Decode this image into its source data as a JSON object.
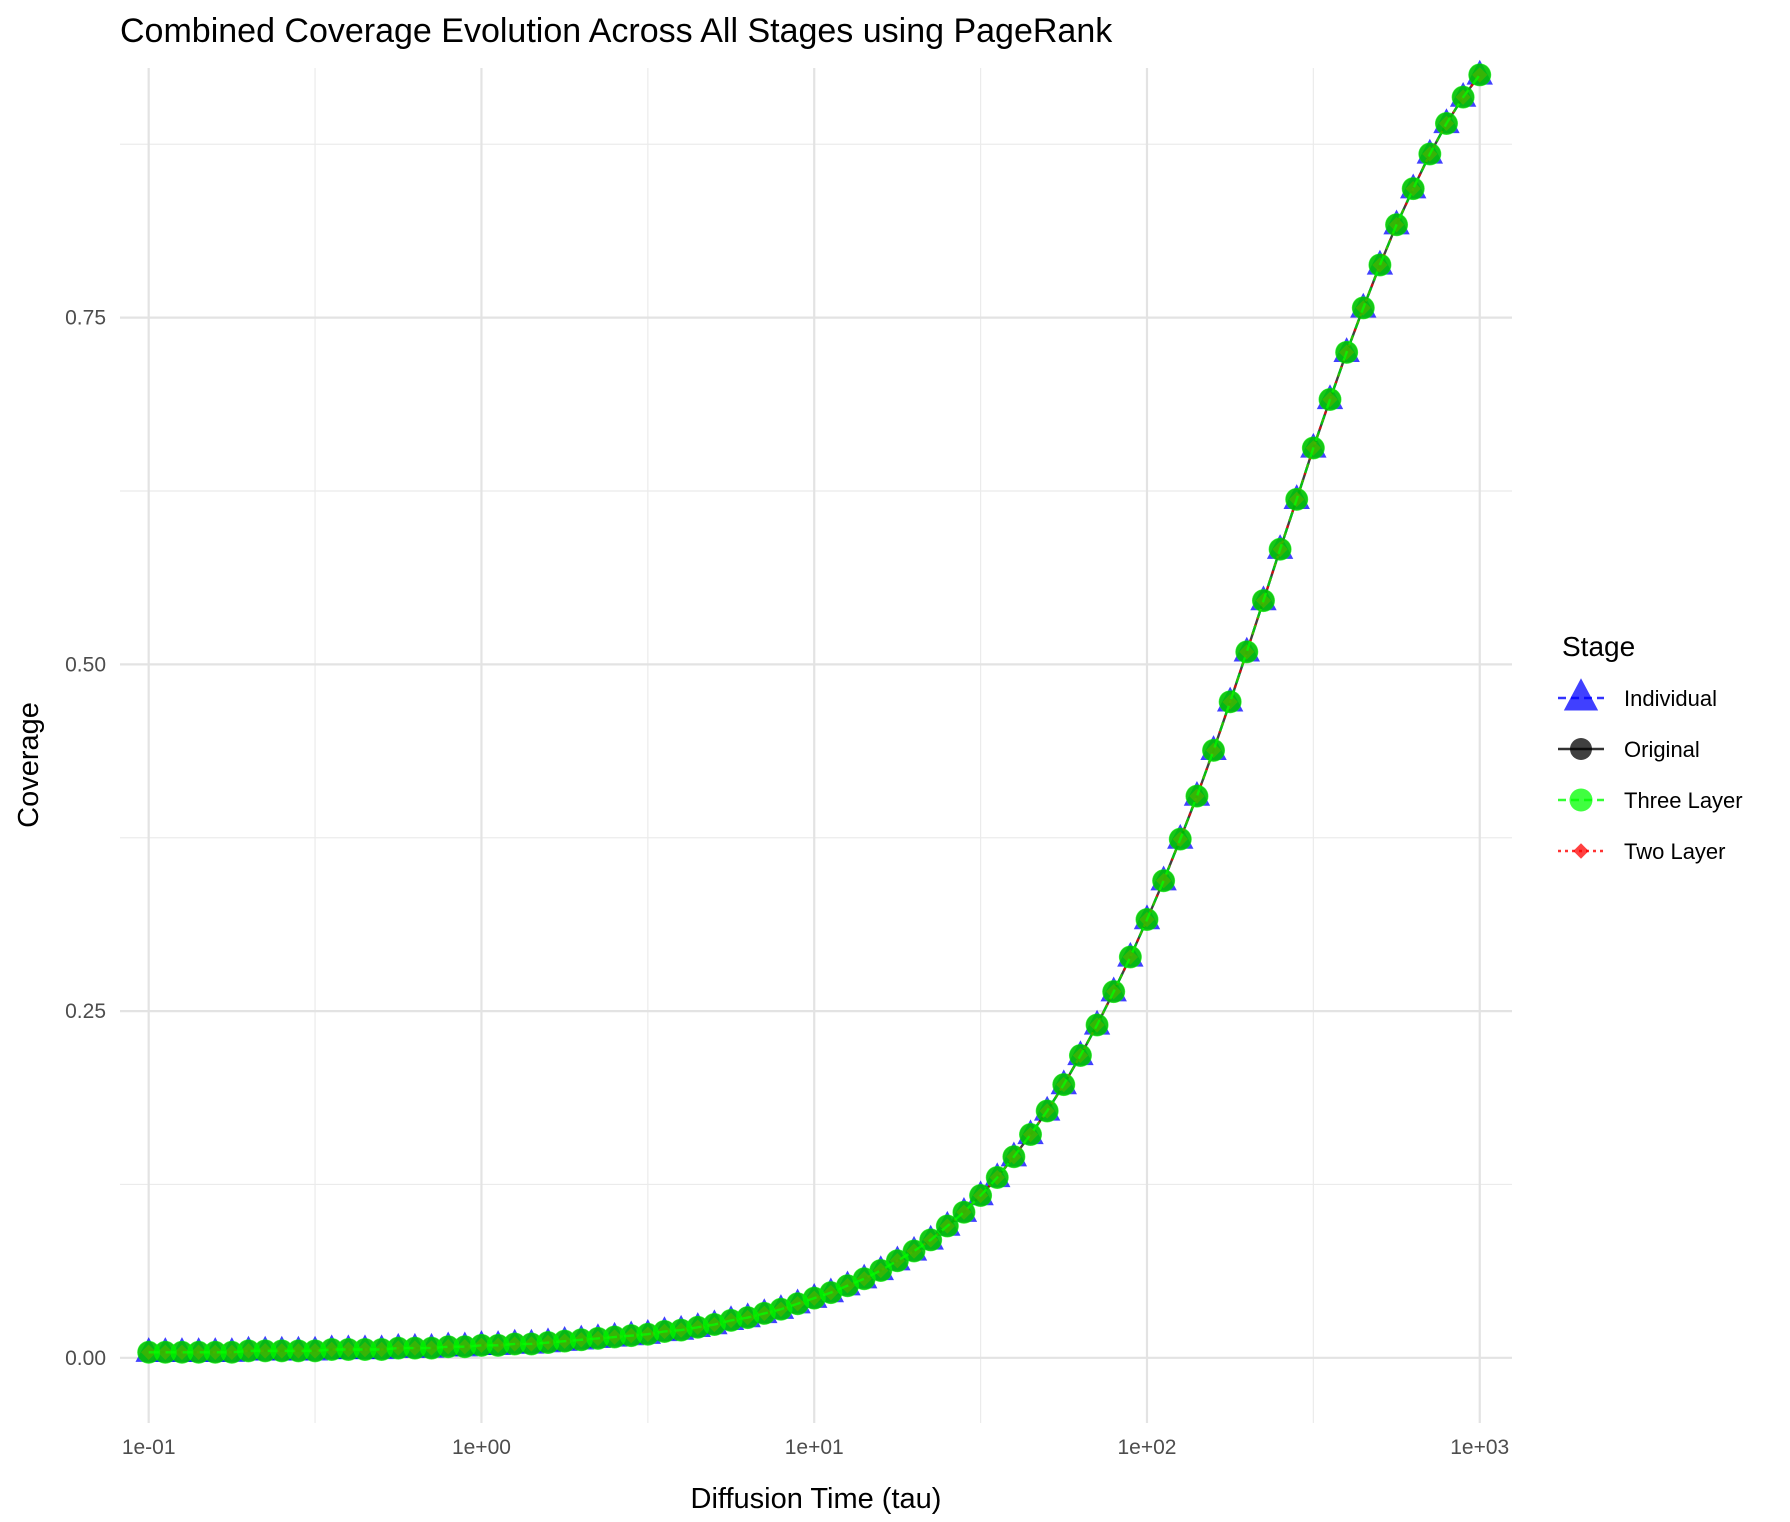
{
  "chart_data": {
    "type": "line",
    "title": "Combined Coverage Evolution Across All Stages using PageRank",
    "xlabel": "Diffusion Time (tau)",
    "ylabel": "Coverage",
    "x_scale": "log10",
    "xlim": [
      0.082,
      1250
    ],
    "ylim": [
      -0.047,
      0.93
    ],
    "x_ticks": [
      0.1,
      1,
      10,
      100,
      1000
    ],
    "x_tick_labels": [
      "1e-01",
      "1e+00",
      "1e+01",
      "1e+02",
      "1e+03"
    ],
    "y_ticks": [
      0,
      0.25,
      0.5,
      0.75
    ],
    "y_tick_labels": [
      "0.00",
      "0.25",
      "0.50",
      "0.75"
    ],
    "grid": true,
    "legend_position": "right",
    "legend_title": "Stage",
    "x": [
      0.1,
      0.1122,
      0.1259,
      0.1413,
      0.1585,
      0.1778,
      0.1995,
      0.2239,
      0.2512,
      0.2818,
      0.3162,
      0.3548,
      0.3981,
      0.4467,
      0.5012,
      0.5623,
      0.631,
      0.7079,
      0.7943,
      0.8913,
      1,
      1.122,
      1.259,
      1.413,
      1.585,
      1.778,
      1.995,
      2.239,
      2.512,
      2.818,
      3.162,
      3.548,
      3.981,
      4.467,
      5.012,
      5.623,
      6.31,
      7.079,
      7.943,
      8.913,
      10,
      11.22,
      12.59,
      14.13,
      15.85,
      17.78,
      19.95,
      22.39,
      25.12,
      28.18,
      31.62,
      35.48,
      39.81,
      44.67,
      50.12,
      56.23,
      63.1,
      70.79,
      79.43,
      89.13,
      100,
      112.2,
      125.9,
      141.3,
      158.5,
      177.8,
      199.5,
      223.9,
      251.2,
      281.8,
      316.2,
      354.8,
      398.1,
      446.7,
      501.2,
      562.3,
      631,
      707.9,
      794.3,
      891.3,
      1000
    ],
    "series": [
      {
        "name": "Individual",
        "color": "#0000ff",
        "marker": "triangle",
        "line": "dashed",
        "values": [
          0.004,
          0.004,
          0.004,
          0.004,
          0.004,
          0.004,
          0.005,
          0.005,
          0.005,
          0.005,
          0.005,
          0.006,
          0.006,
          0.006,
          0.006,
          0.007,
          0.007,
          0.007,
          0.008,
          0.008,
          0.009,
          0.009,
          0.01,
          0.01,
          0.011,
          0.012,
          0.013,
          0.014,
          0.015,
          0.016,
          0.017,
          0.019,
          0.02,
          0.022,
          0.024,
          0.027,
          0.029,
          0.032,
          0.035,
          0.039,
          0.043,
          0.047,
          0.052,
          0.057,
          0.063,
          0.07,
          0.077,
          0.085,
          0.095,
          0.105,
          0.117,
          0.13,
          0.145,
          0.161,
          0.178,
          0.197,
          0.218,
          0.24,
          0.264,
          0.289,
          0.316,
          0.344,
          0.374,
          0.405,
          0.438,
          0.473,
          0.509,
          0.546,
          0.583,
          0.619,
          0.656,
          0.691,
          0.725,
          0.757,
          0.788,
          0.817,
          0.843,
          0.868,
          0.89,
          0.909,
          0.925
        ]
      },
      {
        "name": "Original",
        "color": "#000000",
        "marker": "circle",
        "line": "solid",
        "values": [
          0.004,
          0.004,
          0.004,
          0.004,
          0.004,
          0.004,
          0.005,
          0.005,
          0.005,
          0.005,
          0.005,
          0.006,
          0.006,
          0.006,
          0.006,
          0.007,
          0.007,
          0.007,
          0.008,
          0.008,
          0.009,
          0.009,
          0.01,
          0.01,
          0.011,
          0.012,
          0.013,
          0.014,
          0.015,
          0.016,
          0.017,
          0.019,
          0.02,
          0.022,
          0.024,
          0.027,
          0.029,
          0.032,
          0.035,
          0.039,
          0.043,
          0.047,
          0.052,
          0.057,
          0.063,
          0.07,
          0.077,
          0.085,
          0.095,
          0.105,
          0.117,
          0.13,
          0.145,
          0.161,
          0.178,
          0.197,
          0.218,
          0.24,
          0.264,
          0.289,
          0.316,
          0.344,
          0.374,
          0.405,
          0.438,
          0.473,
          0.509,
          0.546,
          0.583,
          0.619,
          0.656,
          0.691,
          0.725,
          0.757,
          0.788,
          0.817,
          0.843,
          0.868,
          0.89,
          0.909,
          0.925
        ]
      },
      {
        "name": "Three Layer",
        "color": "#00ff00",
        "marker": "circle",
        "line": "dashed",
        "values": [
          0.004,
          0.004,
          0.004,
          0.004,
          0.004,
          0.004,
          0.005,
          0.005,
          0.005,
          0.005,
          0.005,
          0.006,
          0.006,
          0.006,
          0.006,
          0.007,
          0.007,
          0.007,
          0.008,
          0.008,
          0.009,
          0.009,
          0.01,
          0.01,
          0.011,
          0.012,
          0.013,
          0.014,
          0.015,
          0.016,
          0.017,
          0.019,
          0.02,
          0.022,
          0.024,
          0.027,
          0.029,
          0.032,
          0.035,
          0.039,
          0.043,
          0.047,
          0.052,
          0.057,
          0.063,
          0.07,
          0.077,
          0.085,
          0.095,
          0.105,
          0.117,
          0.13,
          0.145,
          0.161,
          0.178,
          0.197,
          0.218,
          0.24,
          0.264,
          0.289,
          0.316,
          0.344,
          0.374,
          0.405,
          0.438,
          0.473,
          0.509,
          0.546,
          0.583,
          0.619,
          0.656,
          0.691,
          0.725,
          0.757,
          0.788,
          0.817,
          0.843,
          0.868,
          0.89,
          0.909,
          0.925
        ]
      },
      {
        "name": "Two Layer",
        "color": "#ff0000",
        "marker": "diamond",
        "line": "dotted",
        "values": [
          0.004,
          0.004,
          0.004,
          0.004,
          0.004,
          0.004,
          0.005,
          0.005,
          0.005,
          0.005,
          0.005,
          0.006,
          0.006,
          0.006,
          0.006,
          0.007,
          0.007,
          0.007,
          0.008,
          0.008,
          0.009,
          0.009,
          0.01,
          0.01,
          0.011,
          0.012,
          0.013,
          0.014,
          0.015,
          0.016,
          0.017,
          0.019,
          0.02,
          0.022,
          0.024,
          0.027,
          0.029,
          0.032,
          0.035,
          0.039,
          0.043,
          0.047,
          0.052,
          0.057,
          0.063,
          0.07,
          0.077,
          0.085,
          0.095,
          0.105,
          0.117,
          0.13,
          0.145,
          0.161,
          0.178,
          0.197,
          0.218,
          0.24,
          0.264,
          0.289,
          0.316,
          0.344,
          0.374,
          0.405,
          0.438,
          0.473,
          0.509,
          0.546,
          0.583,
          0.619,
          0.656,
          0.691,
          0.725,
          0.757,
          0.788,
          0.817,
          0.843,
          0.868,
          0.89,
          0.909,
          0.925
        ]
      }
    ],
    "draw_order": [
      "Individual",
      "Original",
      "Two Layer",
      "Three Layer"
    ]
  }
}
